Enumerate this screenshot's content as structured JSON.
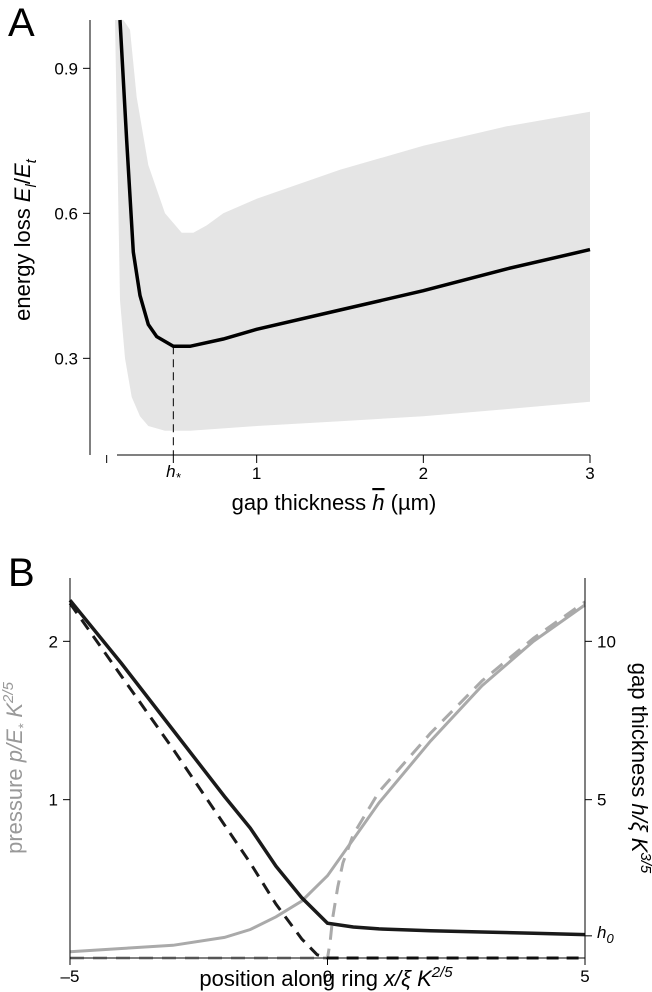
{
  "chart_data": [
    {
      "panel": "A",
      "type": "line",
      "xlabel_parts": [
        "gap thickness ",
        "h",
        " (µm)"
      ],
      "ylabel_parts": [
        "energy loss ",
        "E",
        "l",
        "/",
        "E",
        "t"
      ],
      "xlim": [
        0,
        3
      ],
      "ylim": [
        0.1,
        1.0
      ],
      "xticks": [
        1,
        2,
        3
      ],
      "xtick_labels": [
        "1",
        "2",
        "3"
      ],
      "yticks": [
        0.3,
        0.6,
        0.9
      ],
      "ytick_labels": [
        "0.3",
        "0.6",
        "0.9"
      ],
      "annotation": {
        "label": "h",
        "subscript": "*",
        "x": 0.5
      },
      "band_color": "#e5e5e5",
      "line_color": "#000000",
      "mean": {
        "x": [
          0.18,
          0.22,
          0.26,
          0.3,
          0.35,
          0.4,
          0.5,
          0.6,
          0.8,
          1.0,
          1.5,
          2.0,
          2.5,
          3.0
        ],
        "y": [
          1.0,
          0.75,
          0.52,
          0.43,
          0.37,
          0.345,
          0.325,
          0.325,
          0.34,
          0.36,
          0.4,
          0.44,
          0.485,
          0.525
        ]
      },
      "upper": {
        "x": [
          0.2,
          0.24,
          0.28,
          0.35,
          0.45,
          0.55,
          0.62,
          0.7,
          0.8,
          1.0,
          1.5,
          2.0,
          2.5,
          3.0
        ],
        "y": [
          1.0,
          0.98,
          0.84,
          0.7,
          0.6,
          0.56,
          0.56,
          0.575,
          0.6,
          0.63,
          0.69,
          0.74,
          0.78,
          0.81
        ]
      },
      "lower": {
        "x": [
          0.15,
          0.18,
          0.21,
          0.25,
          0.3,
          0.35,
          0.45,
          0.6,
          1.0,
          1.5,
          2.0,
          2.5,
          3.0
        ],
        "y": [
          1.0,
          0.42,
          0.3,
          0.22,
          0.18,
          0.16,
          0.15,
          0.15,
          0.16,
          0.17,
          0.18,
          0.195,
          0.21
        ]
      }
    },
    {
      "panel": "B",
      "type": "line",
      "xlabel_parts": [
        "position along ring ",
        "x/ξ K",
        "2/5"
      ],
      "ylabel_left_parts": [
        "pressure ",
        "p/E",
        "*",
        " K",
        "2/5"
      ],
      "ylabel_right_parts": [
        "gap thickness ",
        "h/ξ K",
        "3/5"
      ],
      "xlim": [
        -5,
        5
      ],
      "ylim_left": [
        0,
        2.4
      ],
      "ylim_right": [
        0,
        12
      ],
      "xticks": [
        -5,
        0,
        5
      ],
      "xtick_labels": [
        "–5",
        "0",
        "5"
      ],
      "yticks_left": [
        1,
        2
      ],
      "ytick_labels_left": [
        "1",
        "2"
      ],
      "yticks_right": [
        5,
        10
      ],
      "ytick_labels_right": [
        "5",
        "10"
      ],
      "annotation_right": {
        "label": "h",
        "subscript": "0",
        "y": 0.7
      },
      "series": [
        {
          "style": "solid",
          "color": "#1a1a1a",
          "axis": "right",
          "x": [
            -5,
            -4,
            -3,
            -2,
            -1.5,
            -1,
            -0.5,
            0,
            0.5,
            1,
            2,
            3,
            4,
            5
          ],
          "y": [
            11.3,
            9.3,
            7.2,
            5.1,
            4.1,
            2.9,
            1.9,
            1.1,
            0.98,
            0.92,
            0.86,
            0.82,
            0.78,
            0.74
          ]
        },
        {
          "style": "dashed",
          "color": "#1a1a1a",
          "axis": "right",
          "x": [
            -5,
            -4,
            -3,
            -2,
            -1.5,
            -1,
            -0.5,
            -0.2,
            0,
            1,
            2,
            3,
            4,
            5
          ],
          "y": [
            11.2,
            8.9,
            6.6,
            4.2,
            3.0,
            1.7,
            0.6,
            0.1,
            0.0,
            0.0,
            0.0,
            0.0,
            0.0,
            0.0
          ]
        },
        {
          "style": "solid",
          "color": "#aaaaaa",
          "axis": "left",
          "x": [
            -5,
            -4,
            -3,
            -2,
            -1.5,
            -1,
            -0.5,
            0,
            0.5,
            1,
            2,
            3,
            4,
            5
          ],
          "y": [
            0.04,
            0.06,
            0.08,
            0.13,
            0.18,
            0.26,
            0.36,
            0.52,
            0.75,
            0.98,
            1.37,
            1.72,
            2.0,
            2.23
          ]
        },
        {
          "style": "dashed",
          "color": "#aaaaaa",
          "axis": "left",
          "x": [
            -5,
            -2,
            0,
            0.05,
            0.1,
            0.2,
            0.3,
            0.5,
            1,
            2,
            3,
            4,
            5
          ],
          "y": [
            0.0,
            0.0,
            0.0,
            0.1,
            0.25,
            0.45,
            0.6,
            0.78,
            1.05,
            1.42,
            1.75,
            2.02,
            2.25
          ]
        }
      ]
    }
  ]
}
